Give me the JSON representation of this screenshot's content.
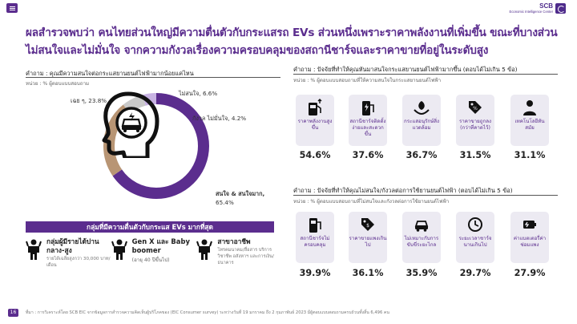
{
  "header": {
    "logo_name": "SCB",
    "logo_sub": "Economic Intelligence Center",
    "menu_icon": "hamburger-icon"
  },
  "headline": "ผลสำรวจพบว่า คนไทยส่วนใหญ่มีความตื่นตัวกับกระแสรถ EVs ส่วนหนึ่งเพราะราคาพลังงานที่เพิ่มขึ้น ขณะที่บางส่วนไม่สนใจและไม่มั่นใจ จากความกังวลเรื่องความครอบคลุมของสถานีชาร์จและราคาขายที่อยู่ในระดับสูง",
  "left": {
    "question": "คำถาม : คุณมีความสนใจต่อกระแสยานยนต์ไฟฟ้ามากน้อยแค่ไหน",
    "unit": "หน่วย : % ผู้ตอบแบบสอบถาม",
    "chart_data": {
      "type": "pie",
      "series": [
        {
          "name": "สนใจ & สนใจมาก",
          "value": 65.4,
          "color": "#5b2d8e"
        },
        {
          "name": "เฉย ๆ",
          "value": 23.8,
          "color": "#b89574"
        },
        {
          "name": "ไม่สนใจ",
          "value": 6.6,
          "color": "#c9c9c9"
        },
        {
          "name": "กังวล ไม่มั่นใจ",
          "value": 4.2,
          "color": "#c8b3e3"
        }
      ]
    },
    "labels": {
      "neutral": "เฉย ๆ, 23.8%",
      "not_interested": "ไม่สนใจ, 6.6%",
      "worried": "กังวล ไม่มั่นใจ, 4.2%",
      "interested_a": "สนใจ & สนใจมาก,",
      "interested_b": "65.4%"
    },
    "banner": "กลุ่มที่มีความตื่นตัวกับกระแส EVs มากที่สุด",
    "groups": [
      {
        "title": "กลุ่มผู้มีรายได้ปานกลาง-สูง",
        "sub": "",
        "desc": "รายได้เฉลี่ยสูงกว่า 30,000 บาท/เดือน",
        "icon": "person-icon"
      },
      {
        "title": "Gen X และ Baby boomer",
        "sub": "(อายุ 40 ปีขึ้นไป)",
        "desc": "",
        "icon": "person-icon"
      },
      {
        "title": "สาขาอาชีพ",
        "sub": "",
        "desc": "โทรคมนาคม/สื่อสาร บริการวิชาชีพ อสังหาฯ และการเงิน/ธนาคาร",
        "icon": "person-icon"
      }
    ]
  },
  "right_top": {
    "question": "คำถาม : ปัจจัยที่ทำให้คุณหันมาสนใจกระแสยานยนต์ไฟฟ้ามากขึ้น (ตอบได้ไม่เกิน 5 ข้อ)",
    "unit": "หน่วย : % ผู้ตอบแบบสอบถามที่ให้ความสนใจในกระแสยานยนต์ไฟฟ้า",
    "items": [
      {
        "label": "ราคาพลังงานสูงขึ้น",
        "value": "54.6%",
        "icon": "fuel-pump-up-icon"
      },
      {
        "label": "สถานีชาร์จติดตั้งง่ายและสะดวกขึ้น",
        "value": "37.6%",
        "icon": "charging-station-icon"
      },
      {
        "label": "กระแสอนุรักษ์สิ่งแวดล้อม",
        "value": "36.7%",
        "icon": "eco-leaf-hands-icon"
      },
      {
        "label": "ราคาขายถูกลง (กว่าที่คาดไว้)",
        "value": "31.5%",
        "icon": "price-tag-down-icon"
      },
      {
        "label": "เทคโนโลยีทันสมัย",
        "value": "31.1%",
        "icon": "tech-user-icon"
      }
    ]
  },
  "right_bottom": {
    "question": "คำถาม : ปัจจัยที่ทำให้คุณไม่สนใจ/กังวลต่อการใช้ยานยนต์ไฟฟ้า (ตอบได้ไม่เกิน 5 ข้อ)",
    "unit": "หน่วย : % ผู้ตอบแบบสอบถามที่ไม่สนใจและกังวลต่อการใช้ยานยนต์ไฟฟ้า",
    "items": [
      {
        "label": "สถานีชาร์จไม่ครอบคลุม",
        "value": "39.9%",
        "icon": "charger-warning-icon"
      },
      {
        "label": "ราคาขายแพงเกินไป",
        "value": "36.1%",
        "icon": "price-tag-high-icon"
      },
      {
        "label": "ไม่เหมาะกับการขับขี่ระยะไกล",
        "value": "35.9%",
        "icon": "car-road-icon"
      },
      {
        "label": "ระยะเวลาชาร์จนานเกินไป",
        "value": "29.7%",
        "icon": "charge-clock-icon"
      },
      {
        "label": "ค่าแบตเตอรี่ค่าซ่อมแพง",
        "value": "27.9%",
        "icon": "battery-repair-icon"
      }
    ]
  },
  "footer": {
    "page": "16",
    "source": "ที่มา : การวิเคราะห์โดย SCB EIC จากข้อมูลการสำรวจความคิดเห็นผู้บริโภคของ (EIC Consumer survey) ระหว่างวันที่ 19 มกราคม ถึง 2 กุมภาพันธ์ 2023 มีผู้ตอบแบบสอบถามครบถ้วนทั้งสิ้น 6,496 คน"
  }
}
